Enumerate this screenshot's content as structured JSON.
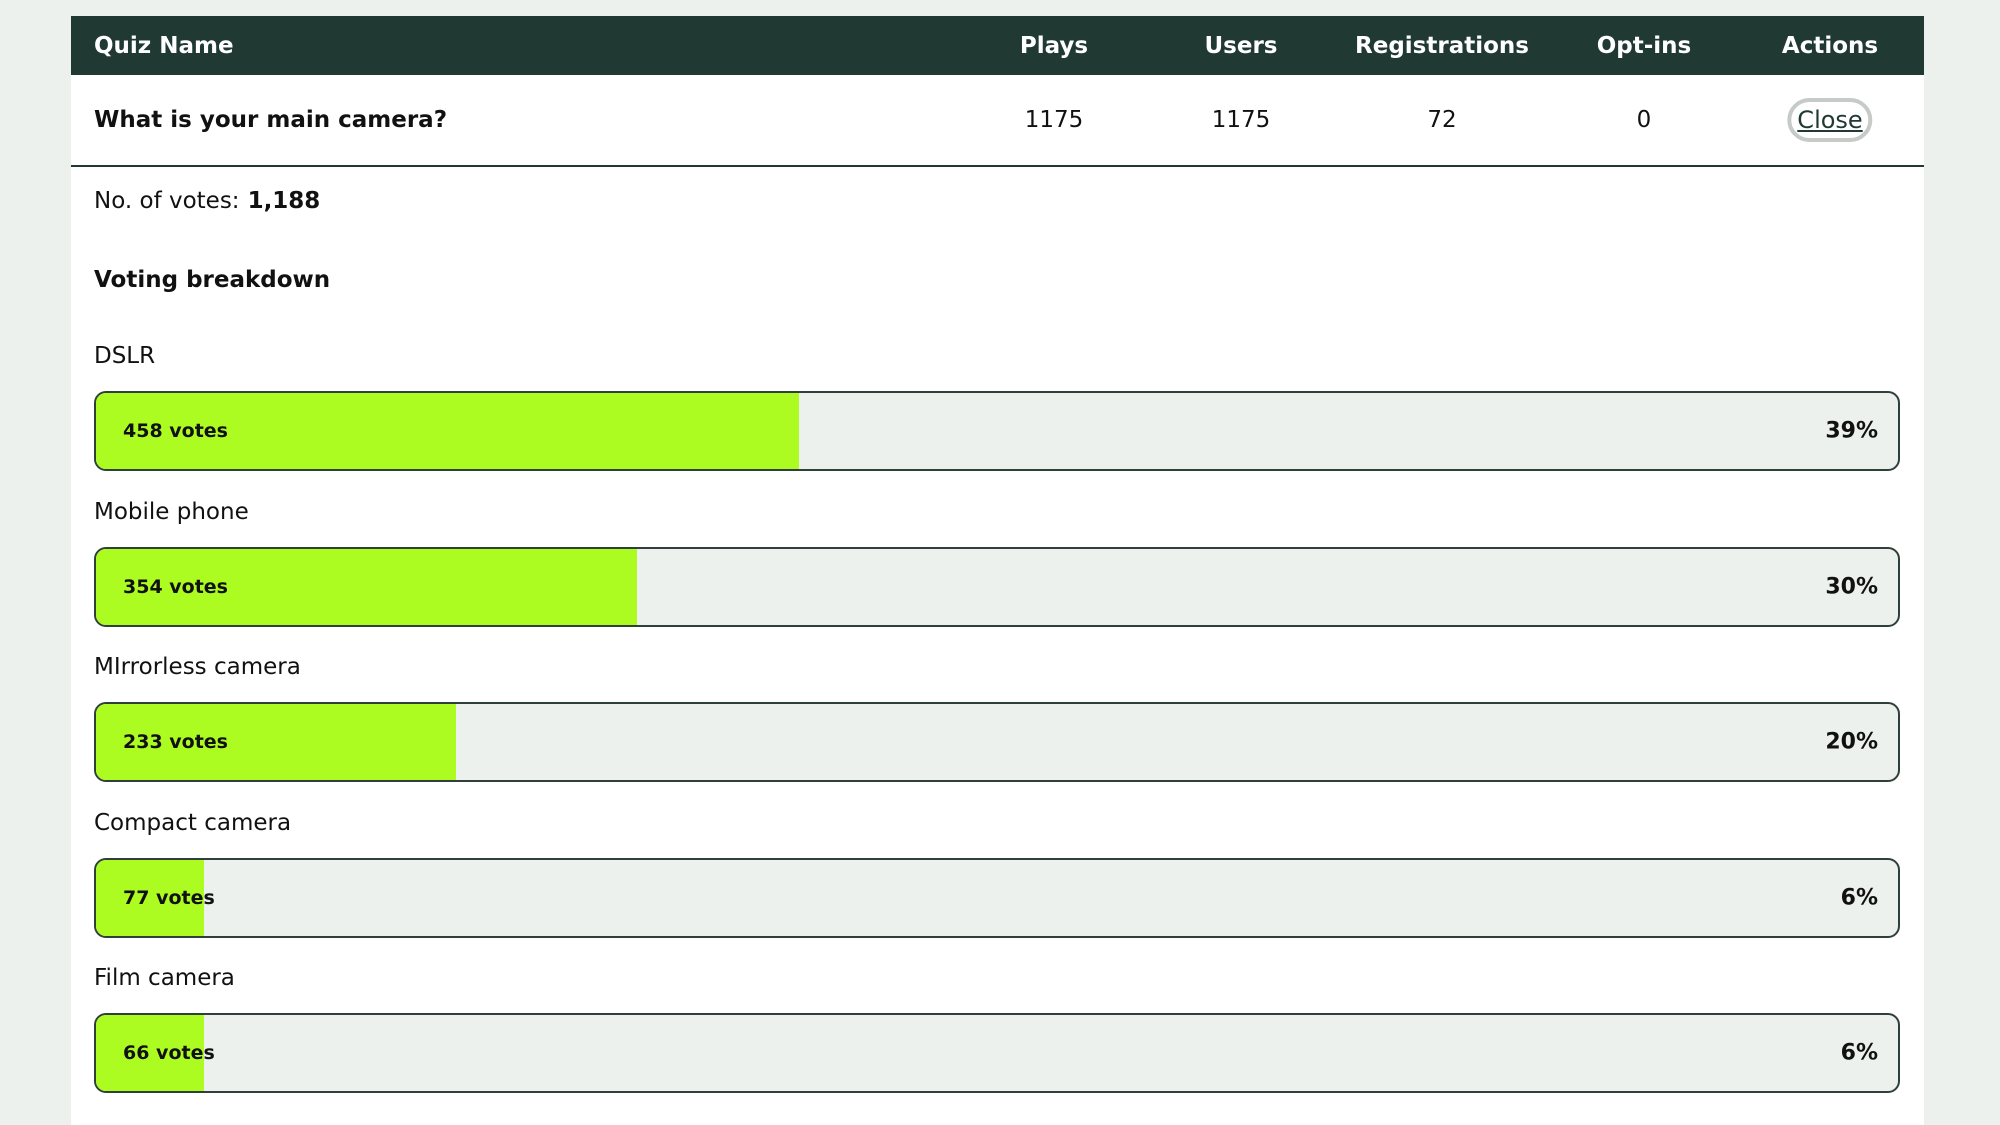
{
  "table": {
    "headers": {
      "quiz_name": "Quiz Name",
      "plays": "Plays",
      "users": "Users",
      "registrations": "Registrations",
      "optins": "Opt-ins",
      "actions": "Actions"
    },
    "row": {
      "quiz_name": "What is your main camera?",
      "plays": "1175",
      "users": "1175",
      "registrations": "72",
      "optins": "0",
      "action_label": "Close"
    }
  },
  "details": {
    "votes_label": "No. of votes:",
    "votes_total": "1,188",
    "breakdown_title": "Voting breakdown",
    "options": [
      {
        "label": "DSLR",
        "votes": "458 votes",
        "percent_label": "39%",
        "percent": 39
      },
      {
        "label": "Mobile phone",
        "votes": "354 votes",
        "percent_label": "30%",
        "percent": 30
      },
      {
        "label": "MIrrorless camera",
        "votes": "233 votes",
        "percent_label": "20%",
        "percent": 20
      },
      {
        "label": "Compact camera",
        "votes": "77 votes",
        "percent_label": "6%",
        "percent": 6
      },
      {
        "label": "Film camera",
        "votes": "66 votes",
        "percent_label": "6%",
        "percent": 6
      }
    ]
  },
  "colors": {
    "header_bg": "#203a33",
    "bar_fill": "#adfc21",
    "bar_track": "#edf1ee"
  }
}
